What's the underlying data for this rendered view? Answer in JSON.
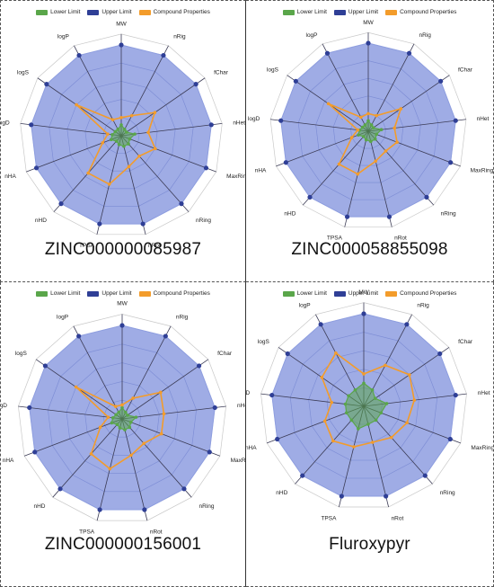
{
  "chart_data": [
    {
      "type": "radar",
      "title": "ZINC000000085987",
      "axes": [
        "MW",
        "nRig",
        "fChar",
        "nHet",
        "MaxRing",
        "nRing",
        "nRot",
        "TPSA",
        "nHD",
        "nHA",
        "logD",
        "logS",
        "logP"
      ],
      "legend": [
        "Lower Limit",
        "Upper Limit",
        "Compound Properties"
      ],
      "series": [
        {
          "name": "Lower Limit",
          "values": [
            0.12,
            0.08,
            0.07,
            0.15,
            0.1,
            0.12,
            0.12,
            0.1,
            0.08,
            0.12,
            0.1,
            0.08,
            0.08
          ]
        },
        {
          "name": "Upper Limit",
          "values": [
            1.0,
            1.0,
            1.0,
            1.0,
            1.0,
            1.0,
            1.0,
            1.0,
            1.0,
            1.0,
            1.0,
            1.0,
            1.0
          ]
        },
        {
          "name": "Compound Properties",
          "values": [
            0.2,
            0.25,
            0.45,
            0.3,
            0.4,
            0.3,
            0.35,
            0.55,
            0.55,
            0.22,
            0.15,
            0.6,
            0.2
          ]
        }
      ]
    },
    {
      "type": "radar",
      "title": "ZINC000058855098",
      "axes": [
        "MW",
        "nRig",
        "fChar",
        "nHet",
        "MaxRing",
        "nRing",
        "nRot",
        "TPSA",
        "nHD",
        "nHA",
        "logD",
        "logS",
        "logP"
      ],
      "legend": [
        "Lower Limit",
        "Upper Limit",
        "Compound Properties"
      ],
      "series": [
        {
          "name": "Lower Limit",
          "values": [
            0.12,
            0.08,
            0.07,
            0.15,
            0.1,
            0.12,
            0.12,
            0.1,
            0.08,
            0.12,
            0.1,
            0.08,
            0.08
          ]
        },
        {
          "name": "Upper Limit",
          "values": [
            1.0,
            1.0,
            1.0,
            1.0,
            1.0,
            1.0,
            1.0,
            1.0,
            1.0,
            1.0,
            1.0,
            1.0,
            1.0
          ]
        },
        {
          "name": "Compound Properties",
          "values": [
            0.2,
            0.2,
            0.45,
            0.3,
            0.35,
            0.3,
            0.35,
            0.5,
            0.5,
            0.2,
            0.12,
            0.55,
            0.18
          ]
        }
      ]
    },
    {
      "type": "radar",
      "title": "ZINC000000156001",
      "axes": [
        "MW",
        "nRig",
        "fChar",
        "nHet",
        "MaxRing",
        "nRing",
        "nRot",
        "TPSA",
        "nHD",
        "nHA",
        "logD",
        "logS",
        "logP"
      ],
      "legend": [
        "Lower Limit",
        "Upper Limit",
        "Compound Properties"
      ],
      "series": [
        {
          "name": "Lower Limit",
          "values": [
            0.12,
            0.08,
            0.07,
            0.15,
            0.1,
            0.12,
            0.12,
            0.1,
            0.08,
            0.12,
            0.1,
            0.08,
            0.08
          ]
        },
        {
          "name": "Upper Limit",
          "values": [
            1.0,
            1.0,
            1.0,
            1.0,
            1.0,
            1.0,
            1.0,
            1.0,
            1.0,
            1.0,
            1.0,
            1.0,
            1.0
          ]
        },
        {
          "name": "Compound Properties",
          "values": [
            0.15,
            0.25,
            0.5,
            0.45,
            0.45,
            0.35,
            0.4,
            0.55,
            0.5,
            0.25,
            0.15,
            0.6,
            0.15
          ]
        }
      ]
    },
    {
      "type": "radar",
      "title": "Fluroxypyr",
      "axes": [
        "MW",
        "nRig",
        "fChar",
        "nHet",
        "MaxRing",
        "nRing",
        "nRot",
        "TPSA",
        "nHD",
        "nHA",
        "logD",
        "logS",
        "logP"
      ],
      "legend": [
        "Lower Limit",
        "Upper Limit",
        "Compound Properties"
      ],
      "series": [
        {
          "name": "Lower Limit",
          "values": [
            0.25,
            0.2,
            0.15,
            0.25,
            0.2,
            0.2,
            0.2,
            0.25,
            0.2,
            0.2,
            0.2,
            0.2,
            0.2
          ]
        },
        {
          "name": "Upper Limit",
          "values": [
            1.0,
            1.0,
            1.0,
            1.0,
            1.0,
            1.0,
            1.0,
            1.0,
            1.0,
            1.0,
            1.0,
            1.0,
            1.0
          ]
        },
        {
          "name": "Compound Properties",
          "values": [
            0.35,
            0.5,
            0.6,
            0.55,
            0.5,
            0.45,
            0.4,
            0.45,
            0.5,
            0.45,
            0.35,
            0.55,
            0.65
          ]
        }
      ]
    }
  ],
  "colors": {
    "lower": "#5aa64a",
    "upper": "#2f3f96",
    "compound": "#f39c2b",
    "fill": "#8e9ee0",
    "grid": "#c9c9c9"
  }
}
